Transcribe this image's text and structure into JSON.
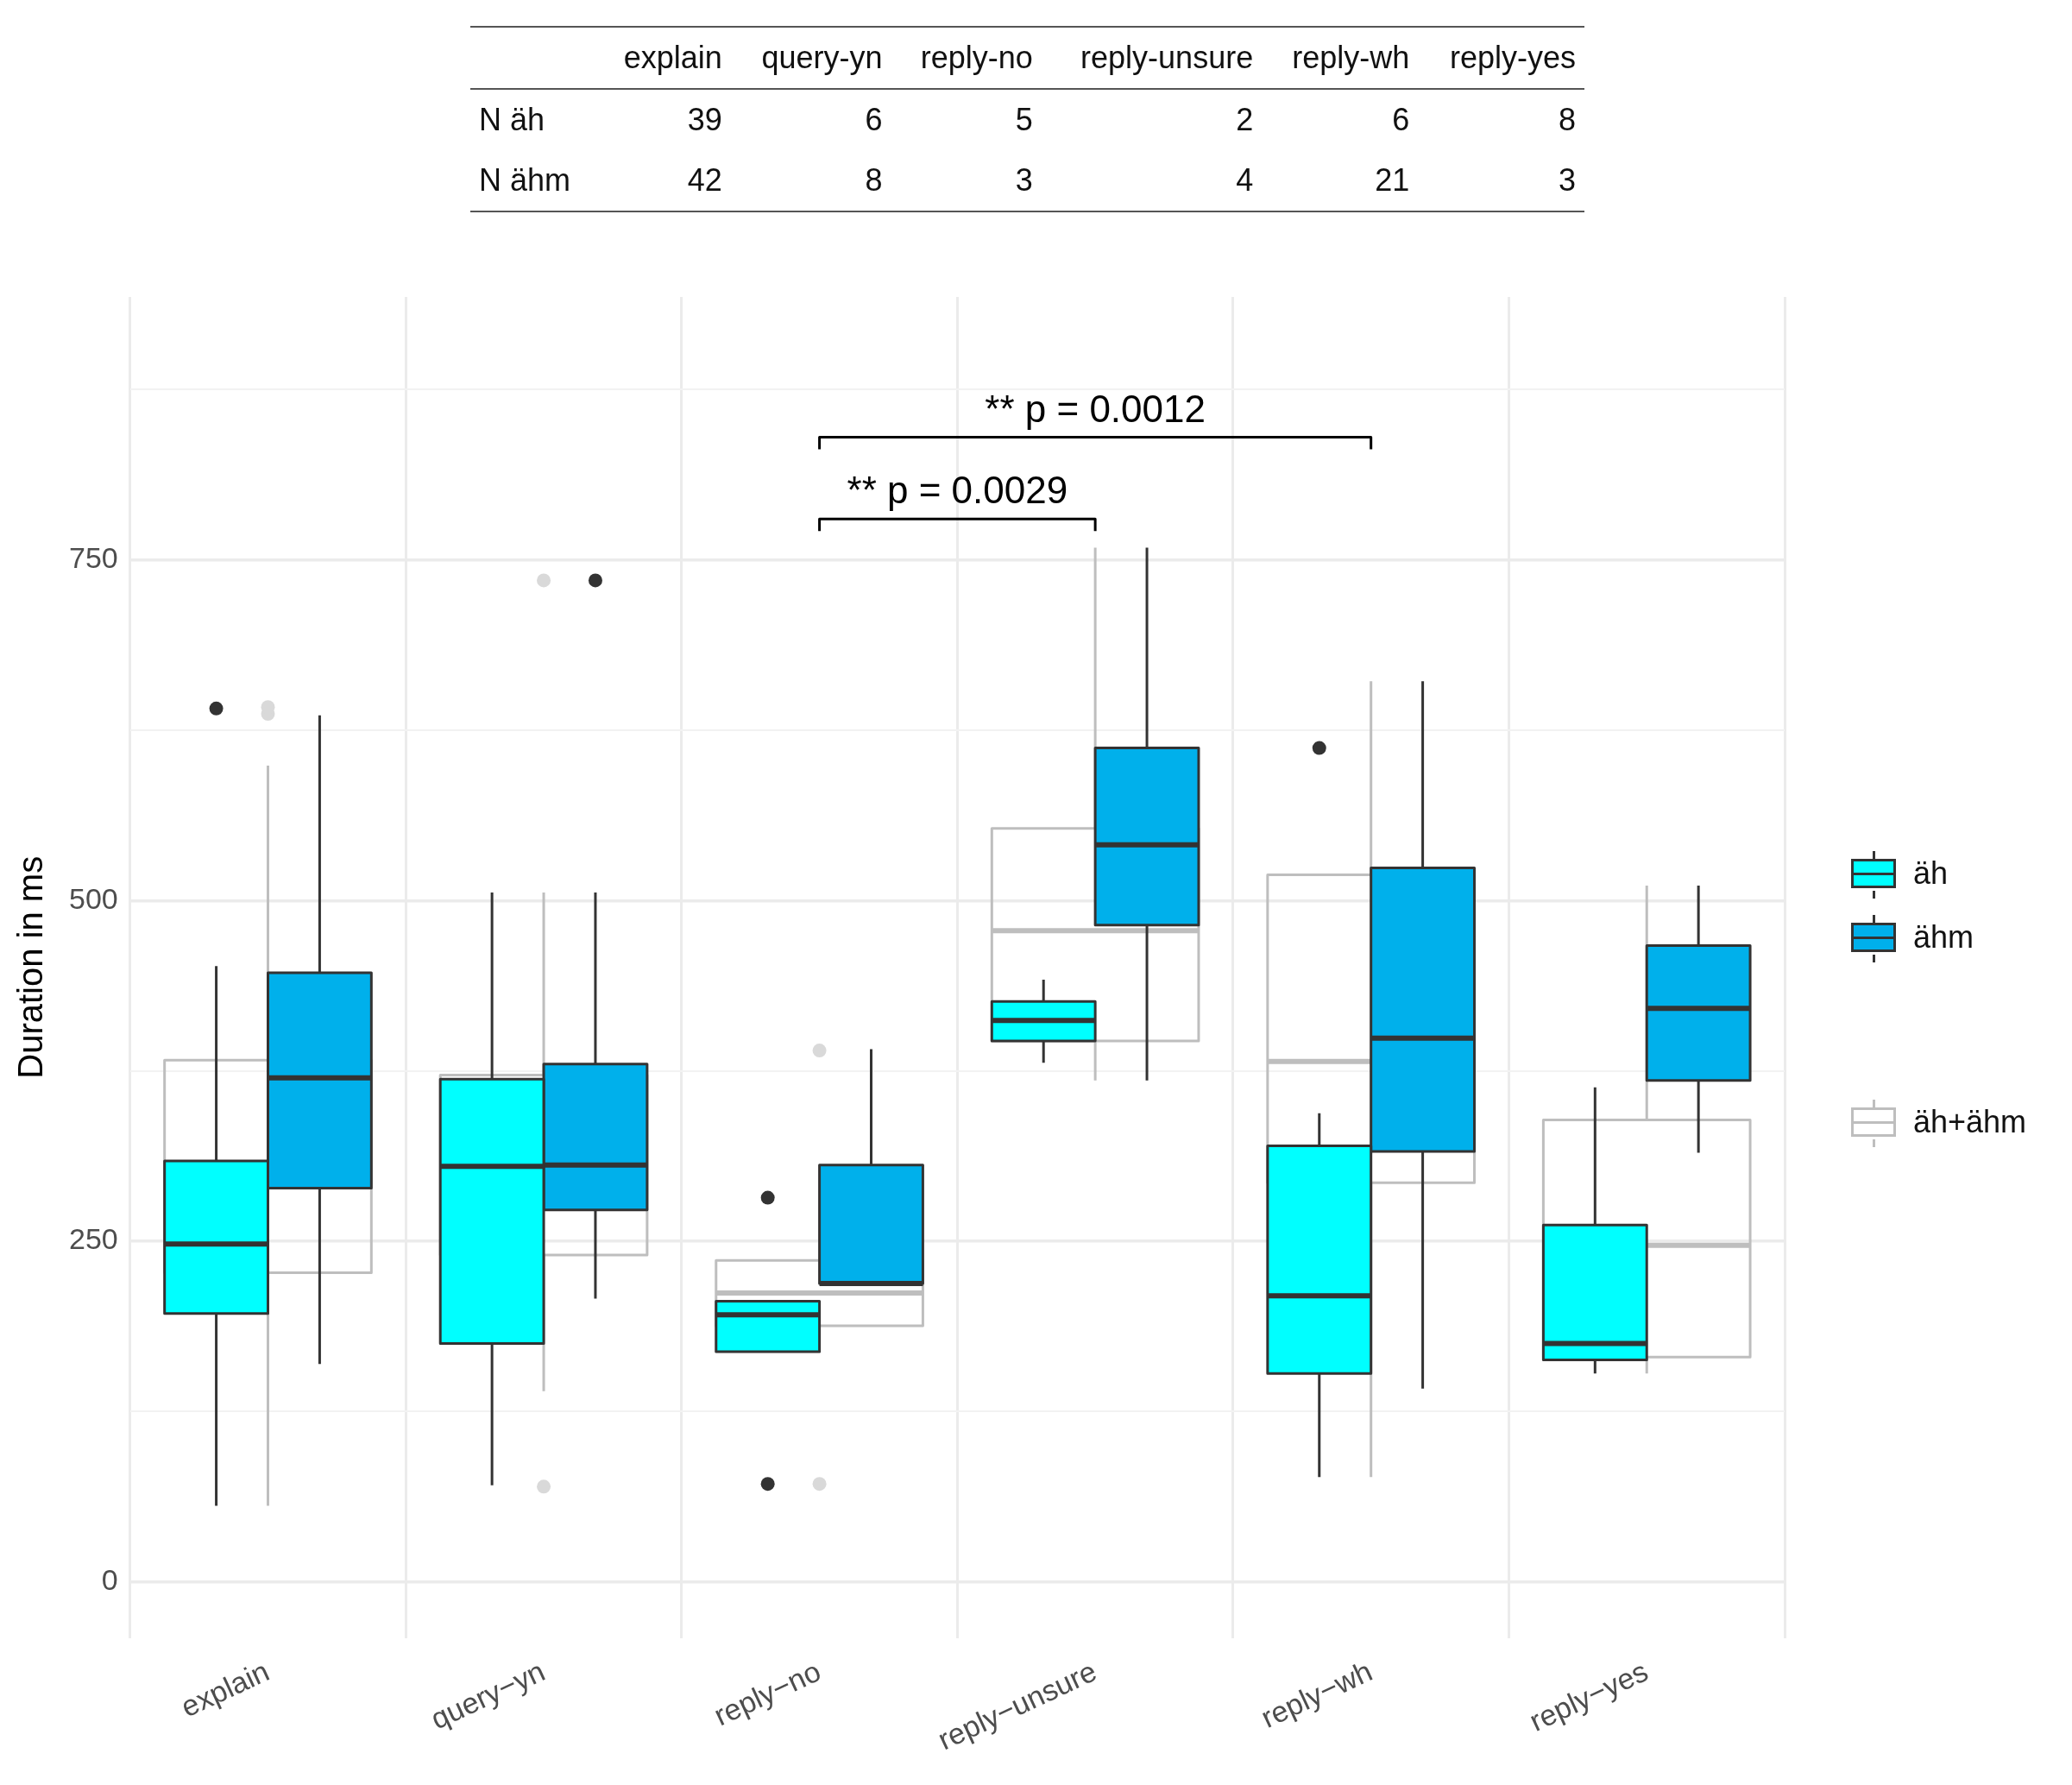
{
  "chart_data": [
    {
      "type": "other",
      "categories": [
        "explain",
        "query-yn",
        "reply-no",
        "reply-unsure",
        "reply-wh",
        "reply-yes"
      ],
      "data_labels": true,
      "series": [
        {
          "name": "N äh",
          "values": [
            39,
            6,
            5,
            2,
            6,
            8
          ]
        },
        {
          "name": "N ähm",
          "values": [
            42,
            8,
            3,
            4,
            21,
            3
          ]
        }
      ]
    },
    {
      "type": "box",
      "categories": [
        "explain",
        "query−yn",
        "reply−no",
        "reply−unsure",
        "reply−wh",
        "reply−yes"
      ],
      "ylabel": "Duration in ms",
      "ylim": [
        -41,
        943
      ],
      "yticks": [
        0,
        {
          "value": 125,
          "label": null
        },
        250,
        {
          "value": 375,
          "label": null
        },
        500,
        {
          "value": 625,
          "label": null
        },
        750,
        {
          "value": 875,
          "label": null
        }
      ],
      "grid": true,
      "legend": "right",
      "annotations": [
        "** p = 0.0029",
        "** p = 0.0012"
      ],
      "series": [
        {
          "name": "äh",
          "color": "#00ffff",
          "boxes": [
            {
              "low": 56,
              "q1": 197,
              "median": 248,
              "q3": 309,
              "high": 452,
              "outliers": [
                641
              ]
            },
            {
              "low": 71,
              "q1": 175,
              "median": 305,
              "q3": 369,
              "high": 506
            },
            {
              "low": 169,
              "q1": 169,
              "median": 196,
              "q3": 206,
              "high": 206,
              "outliers": [
                282,
                72
              ]
            },
            {
              "low": 381,
              "q1": 397,
              "median": 412,
              "q3": 426,
              "high": 442
            },
            {
              "low": 77,
              "q1": 153,
              "median": 210,
              "q3": 320,
              "high": 344,
              "outliers": [
                612
              ]
            },
            {
              "low": 153,
              "q1": 163,
              "median": 175,
              "q3": 262,
              "high": 363
            }
          ]
        },
        {
          "name": "ähm",
          "color": "#00b0eb",
          "boxes": [
            {
              "low": 160,
              "q1": 289,
              "median": 370,
              "q3": 447,
              "high": 636
            },
            {
              "low": 208,
              "q1": 273,
              "median": 306,
              "q3": 380,
              "high": 506,
              "outliers": [
                735
              ]
            },
            {
              "low": 219,
              "q1": 219,
              "median": 219,
              "q3": 306,
              "high": 391
            },
            {
              "low": 368,
              "q1": 482,
              "median": 541,
              "q3": 612,
              "high": 759
            },
            {
              "low": 142,
              "q1": 316,
              "median": 399,
              "q3": 524,
              "high": 661
            },
            {
              "low": 315,
              "q1": 368,
              "median": 421,
              "q3": 467,
              "high": 511
            }
          ]
        },
        {
          "name": "äh+ähm",
          "color": "#bebebe",
          "boxes": [
            {
              "low": 56,
              "q1": 227,
              "median": 300,
              "q3": 383,
              "high": 599,
              "outliers": [
                637,
                642
              ]
            },
            {
              "low": 140,
              "q1": 240,
              "median": 305,
              "q3": 372,
              "high": 506,
              "outliers": [
                735,
                70
              ]
            },
            {
              "low": 188,
              "q1": 188,
              "median": 212,
              "q3": 236,
              "high": 236,
              "outliers": [
                390,
                72
              ]
            },
            {
              "low": 368,
              "q1": 397,
              "median": 478,
              "q3": 553,
              "high": 759
            },
            {
              "low": 77,
              "q1": 293,
              "median": 382,
              "q3": 519,
              "high": 661
            },
            {
              "low": 153,
              "q1": 165,
              "median": 247,
              "q3": 339,
              "high": 511
            }
          ]
        }
      ]
    }
  ]
}
